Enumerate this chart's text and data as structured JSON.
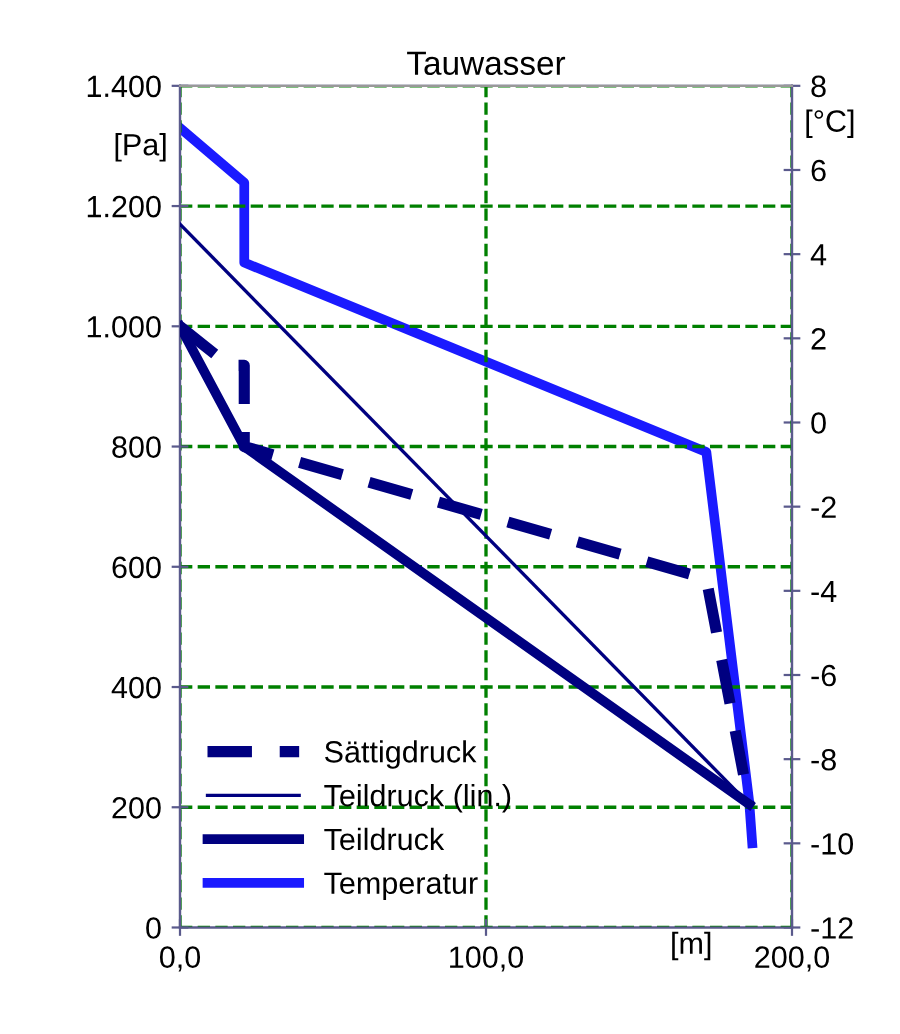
{
  "chart_data": {
    "type": "line",
    "title": "Tauwasser",
    "xlabel": "[m]",
    "ylabel": "[Pa]",
    "y2label": "[°C]",
    "series": [
      {
        "name": "Sättigdruck",
        "color": "#000080",
        "line_style": "dashed",
        "x": [
          0,
          16,
          21,
          21,
          172,
          186
        ],
        "values": [
          1000,
          935,
          935,
          800,
          580,
          205
        ]
      },
      {
        "name": "Teildruck (lin.)",
        "color": "#000080",
        "line_style": "solid",
        "x": [
          0,
          186
        ],
        "values": [
          1170,
          205
        ]
      },
      {
        "name": "Teildruck",
        "color": "#000080",
        "line_style": "solid",
        "x": [
          0,
          21,
          186
        ],
        "values": [
          1000,
          800,
          205
        ]
      },
      {
        "name": "Temperatur",
        "color": "#1a1aff",
        "line_style": "solid",
        "axis": "y2",
        "x": [
          0,
          21,
          21,
          172,
          186,
          187
        ],
        "values": [
          7.0,
          5.7,
          3.8,
          -0.7,
          -9.0,
          -10.0
        ]
      }
    ],
    "xlim": [
      0,
      200
    ],
    "xticks": [
      {
        "value": 0,
        "label": "0,0"
      },
      {
        "value": 100,
        "label": "100,0"
      },
      {
        "value": 200,
        "label": "200,0"
      }
    ],
    "ylim": [
      0,
      1400
    ],
    "yticks": [
      0,
      200,
      400,
      600,
      800,
      {
        "value": 1000,
        "label": "1.000"
      },
      {
        "value": 1200,
        "label": "1.200"
      },
      {
        "value": 1400,
        "label": "1.400"
      }
    ],
    "y2lim": [
      -12,
      8
    ],
    "y2ticks": [
      -12,
      -10,
      -8,
      -6,
      -4,
      -2,
      0,
      2,
      4,
      6,
      8
    ],
    "grid": true,
    "legend": "bottom left",
    "marker": "none"
  }
}
